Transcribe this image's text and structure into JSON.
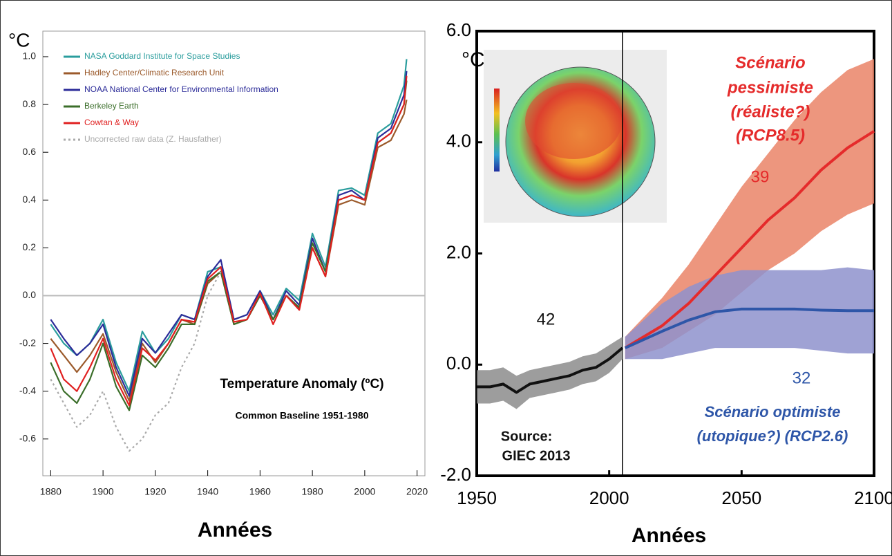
{
  "chart_data": [
    {
      "type": "line",
      "title": "Temperature Anomaly (ºC)",
      "subtitle": "Common Baseline 1951-1980",
      "y_label": "°C",
      "x_label": "Années",
      "xlim": [
        1877,
        2023
      ],
      "ylim": [
        -0.754,
        1.107
      ],
      "xticks": [
        1880,
        1900,
        1920,
        1940,
        1960,
        1980,
        2000,
        2020
      ],
      "yticks": [
        {
          "value": -0.6,
          "label": "-0.6"
        },
        {
          "value": -0.4,
          "label": "-0.4"
        },
        {
          "value": -0.2,
          "label": "-0.2"
        },
        {
          "value": 0,
          "label": "0.0"
        },
        {
          "value": 0.2,
          "label": "0.2"
        },
        {
          "value": 0.4,
          "label": "0.4"
        },
        {
          "value": 0.6,
          "label": "0.6"
        },
        {
          "value": 0.8,
          "label": "0.8"
        },
        {
          "value": 1,
          "label": "1.0"
        }
      ],
      "hlines": [
        0
      ],
      "x": [
        1880,
        1885,
        1890,
        1895,
        1900,
        1905,
        1910,
        1915,
        1920,
        1925,
        1930,
        1935,
        1940,
        1945,
        1950,
        1955,
        1960,
        1965,
        1970,
        1975,
        1980,
        1985,
        1990,
        1995,
        2000,
        2005,
        2010,
        2015,
        2016
      ],
      "series": [
        {
          "name": "NASA Goddard Institute for Space Studies",
          "color": "#2a9d9d",
          "values": [
            -0.12,
            -0.2,
            -0.25,
            -0.2,
            -0.1,
            -0.28,
            -0.4,
            -0.15,
            -0.24,
            -0.18,
            -0.08,
            -0.1,
            0.1,
            0.12,
            -0.1,
            -0.08,
            0.02,
            -0.08,
            0.03,
            -0.02,
            0.26,
            0.12,
            0.44,
            0.45,
            0.42,
            0.68,
            0.72,
            0.88,
            0.99
          ]
        },
        {
          "name": "Hadley Center/Climatic Research Unit",
          "color": "#9b5a2b",
          "values": [
            -0.18,
            -0.25,
            -0.32,
            -0.25,
            -0.16,
            -0.32,
            -0.44,
            -0.2,
            -0.28,
            -0.2,
            -0.1,
            -0.12,
            0.05,
            0.1,
            -0.12,
            -0.1,
            0.0,
            -0.1,
            0.0,
            -0.05,
            0.2,
            0.08,
            0.38,
            0.4,
            0.38,
            0.62,
            0.65,
            0.76,
            0.82
          ]
        },
        {
          "name": "NOAA National Center for Environmental Information",
          "color": "#2c2c99",
          "values": [
            -0.1,
            -0.18,
            -0.25,
            -0.2,
            -0.12,
            -0.3,
            -0.42,
            -0.18,
            -0.24,
            -0.16,
            -0.08,
            -0.1,
            0.08,
            0.15,
            -0.1,
            -0.08,
            0.02,
            -0.1,
            0.02,
            -0.04,
            0.24,
            0.1,
            0.42,
            0.44,
            0.4,
            0.66,
            0.7,
            0.84,
            0.94
          ]
        },
        {
          "name": "Berkeley Earth",
          "color": "#3b6e2a",
          "values": [
            -0.28,
            -0.4,
            -0.45,
            -0.35,
            -0.2,
            -0.38,
            -0.48,
            -0.25,
            -0.3,
            -0.22,
            -0.12,
            -0.12,
            0.06,
            0.1,
            -0.12,
            -0.1,
            0.0,
            -0.1,
            0.0,
            -0.05,
            0.22,
            0.1,
            0.4,
            0.42,
            0.4,
            0.64,
            0.68,
            0.8,
            0.9
          ]
        },
        {
          "name": "Cowtan & Way",
          "color": "#e02020",
          "values": [
            -0.22,
            -0.35,
            -0.4,
            -0.3,
            -0.18,
            -0.35,
            -0.46,
            -0.22,
            -0.27,
            -0.2,
            -0.1,
            -0.11,
            0.07,
            0.12,
            -0.11,
            -0.1,
            0.01,
            -0.12,
            0.0,
            -0.06,
            0.2,
            0.08,
            0.4,
            0.42,
            0.4,
            0.64,
            0.68,
            0.8,
            0.92
          ]
        },
        {
          "name": "Uncorrected raw data (Z. Hausfather)",
          "color": "#aaaaaa",
          "style": "dotted",
          "values": [
            -0.35,
            -0.45,
            -0.55,
            -0.5,
            -0.4,
            -0.55,
            -0.65,
            -0.6,
            -0.5,
            -0.45,
            -0.3,
            -0.2,
            0.0,
            0.1,
            null,
            null,
            null,
            null,
            null,
            null,
            null,
            null,
            null,
            null,
            null,
            null,
            null,
            null,
            null
          ]
        }
      ]
    },
    {
      "type": "line",
      "y_label": "°C",
      "x_label": "Années",
      "xlim": [
        1950,
        2100
      ],
      "ylim": [
        -2,
        6
      ],
      "xticks": [
        1950,
        2000,
        2050,
        2100
      ],
      "yticks": [
        {
          "value": -2,
          "label": "-2.0"
        },
        {
          "value": 0,
          "label": "0.0"
        },
        {
          "value": 2,
          "label": "2.0"
        },
        {
          "value": 4,
          "label": "4.0"
        },
        {
          "value": 6,
          "label": "6.0"
        }
      ],
      "vlines": [
        2005
      ],
      "series": [
        {
          "color": "#111111",
          "band_color": "#8c8c8c",
          "x": [
            1950,
            1955,
            1960,
            1965,
            1970,
            1975,
            1980,
            1985,
            1990,
            1995,
            2000,
            2005
          ],
          "values": [
            -0.4,
            -0.4,
            -0.35,
            -0.5,
            -0.35,
            -0.3,
            -0.25,
            -0.2,
            -0.1,
            -0.05,
            0.1,
            0.3
          ],
          "lower": [
            -0.7,
            -0.7,
            -0.65,
            -0.8,
            -0.6,
            -0.55,
            -0.5,
            -0.45,
            -0.35,
            -0.3,
            -0.15,
            0.1
          ],
          "upper": [
            -0.1,
            -0.1,
            -0.05,
            -0.2,
            -0.1,
            -0.05,
            0.0,
            0.05,
            0.15,
            0.2,
            0.35,
            0.5
          ]
        },
        {
          "color": "#e52b2b",
          "band_color": "#ea8467",
          "x": [
            2006,
            2020,
            2030,
            2040,
            2050,
            2060,
            2070,
            2080,
            2090,
            2100
          ],
          "values": [
            0.3,
            0.7,
            1.1,
            1.6,
            2.1,
            2.6,
            3.0,
            3.5,
            3.9,
            4.2
          ],
          "lower": [
            0.1,
            0.3,
            0.6,
            0.9,
            1.3,
            1.7,
            2.0,
            2.4,
            2.7,
            2.9
          ],
          "upper": [
            0.5,
            1.2,
            1.8,
            2.5,
            3.2,
            3.8,
            4.4,
            4.9,
            5.3,
            5.5
          ]
        },
        {
          "color": "#2e56a8",
          "band_color": "#8e92cc",
          "x": [
            2006,
            2020,
            2030,
            2040,
            2050,
            2060,
            2070,
            2080,
            2090,
            2100
          ],
          "values": [
            0.3,
            0.6,
            0.8,
            0.95,
            1.0,
            1.0,
            1.0,
            0.98,
            0.97,
            0.97
          ],
          "lower": [
            0.1,
            0.1,
            0.2,
            0.3,
            0.3,
            0.3,
            0.3,
            0.25,
            0.2,
            0.2
          ],
          "upper": [
            0.5,
            1.1,
            1.4,
            1.6,
            1.7,
            1.7,
            1.7,
            1.7,
            1.75,
            1.7
          ]
        }
      ],
      "annotations": [
        {
          "text": "Scénario",
          "color": "#e52b2b"
        },
        {
          "text": "pessimiste",
          "color": "#e52b2b"
        },
        {
          "text": "(réaliste?)",
          "color": "#e52b2b"
        },
        {
          "text": "(RCP8.5)",
          "color": "#e52b2b"
        },
        {
          "text": "39",
          "color": "#e52b2b"
        },
        {
          "text": "42",
          "color": "#111111"
        },
        {
          "text": "32",
          "color": "#2e56a8"
        },
        {
          "text": "Scénario optimiste",
          "color": "#2e56a8"
        },
        {
          "text": "(utopique?) (RCP2.6)",
          "color": "#2e56a8"
        },
        {
          "text": "Source:",
          "color": "#111111"
        },
        {
          "text": "GIEC 2013",
          "color": "#111111"
        }
      ]
    }
  ]
}
